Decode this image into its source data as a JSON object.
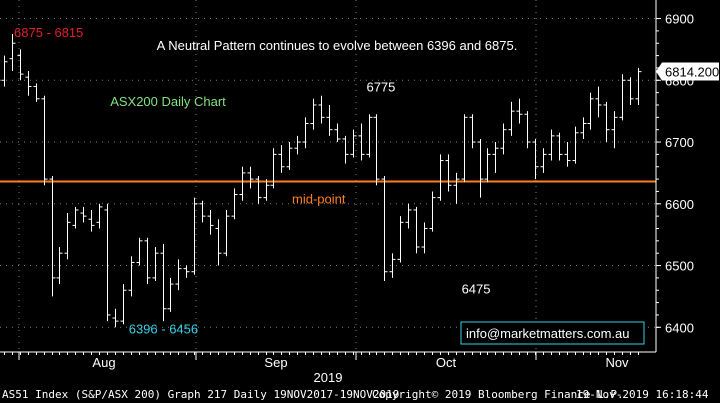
{
  "chart_data": {
    "type": "ohlc",
    "title": "ASX200 Daily Chart",
    "subtitle": "A Neutral Pattern continues to evolve between 6396 and 6875.",
    "ylim": [
      6360,
      6930
    ],
    "yticks": [
      6400,
      6500,
      6600,
      6700,
      6800,
      6900
    ],
    "x_month_labels": [
      "Aug",
      "Sep",
      "Oct",
      "Nov"
    ],
    "x_year_label": "2019",
    "last_price": "6814.200",
    "mid_point": {
      "value": 6636,
      "label": "mid-point",
      "color": "#ff7f1e"
    },
    "annotations": [
      {
        "text": "6875 - 6815",
        "color": "#e0202a",
        "x": 0,
        "y": 6870
      },
      {
        "text": "6775",
        "color": "#ffffff",
        "x": 47,
        "y": 6782
      },
      {
        "text": "6396 - 6456",
        "color": "#35d0e8",
        "x": 17,
        "y": 6390
      },
      {
        "text": "6475",
        "color": "#ffffff",
        "x": 59,
        "y": 6455
      }
    ],
    "contact": "info@marketmatters.com.au",
    "bars": [
      {
        "o": 6800,
        "h": 6840,
        "l": 6790,
        "c": 6830
      },
      {
        "o": 6835,
        "h": 6875,
        "l": 6815,
        "c": 6860
      },
      {
        "o": 6840,
        "h": 6850,
        "l": 6800,
        "c": 6810
      },
      {
        "o": 6805,
        "h": 6815,
        "l": 6775,
        "c": 6790
      },
      {
        "o": 6790,
        "h": 6795,
        "l": 6765,
        "c": 6770
      },
      {
        "o": 6770,
        "h": 6775,
        "l": 6630,
        "c": 6640
      },
      {
        "o": 6640,
        "h": 6645,
        "l": 6450,
        "c": 6480
      },
      {
        "o": 6480,
        "h": 6530,
        "l": 6470,
        "c": 6520
      },
      {
        "o": 6520,
        "h": 6585,
        "l": 6510,
        "c": 6570
      },
      {
        "o": 6565,
        "h": 6595,
        "l": 6560,
        "c": 6590
      },
      {
        "o": 6585,
        "h": 6595,
        "l": 6570,
        "c": 6580
      },
      {
        "o": 6575,
        "h": 6590,
        "l": 6555,
        "c": 6565
      },
      {
        "o": 6570,
        "h": 6600,
        "l": 6560,
        "c": 6595
      },
      {
        "o": 6590,
        "h": 6600,
        "l": 6410,
        "c": 6420
      },
      {
        "o": 6415,
        "h": 6430,
        "l": 6400,
        "c": 6410
      },
      {
        "o": 6410,
        "h": 6470,
        "l": 6405,
        "c": 6460
      },
      {
        "o": 6460,
        "h": 6515,
        "l": 6450,
        "c": 6505
      },
      {
        "o": 6505,
        "h": 6545,
        "l": 6500,
        "c": 6540
      },
      {
        "o": 6540,
        "h": 6545,
        "l": 6470,
        "c": 6480
      },
      {
        "o": 6480,
        "h": 6530,
        "l": 6475,
        "c": 6520
      },
      {
        "o": 6520,
        "h": 6535,
        "l": 6410,
        "c": 6430
      },
      {
        "o": 6430,
        "h": 6480,
        "l": 6425,
        "c": 6470
      },
      {
        "o": 6470,
        "h": 6510,
        "l": 6460,
        "c": 6495
      },
      {
        "o": 6495,
        "h": 6500,
        "l": 6480,
        "c": 6490
      },
      {
        "o": 6490,
        "h": 6610,
        "l": 6485,
        "c": 6600
      },
      {
        "o": 6600,
        "h": 6605,
        "l": 6570,
        "c": 6580
      },
      {
        "o": 6580,
        "h": 6590,
        "l": 6550,
        "c": 6565
      },
      {
        "o": 6560,
        "h": 6575,
        "l": 6500,
        "c": 6520
      },
      {
        "o": 6520,
        "h": 6590,
        "l": 6515,
        "c": 6580
      },
      {
        "o": 6580,
        "h": 6625,
        "l": 6575,
        "c": 6615
      },
      {
        "o": 6615,
        "h": 6660,
        "l": 6605,
        "c": 6650
      },
      {
        "o": 6650,
        "h": 6660,
        "l": 6625,
        "c": 6640
      },
      {
        "o": 6640,
        "h": 6645,
        "l": 6600,
        "c": 6610
      },
      {
        "o": 6610,
        "h": 6640,
        "l": 6605,
        "c": 6630
      },
      {
        "o": 6630,
        "h": 6690,
        "l": 6625,
        "c": 6680
      },
      {
        "o": 6680,
        "h": 6695,
        "l": 6650,
        "c": 6660
      },
      {
        "o": 6660,
        "h": 6700,
        "l": 6655,
        "c": 6690
      },
      {
        "o": 6690,
        "h": 6710,
        "l": 6680,
        "c": 6700
      },
      {
        "o": 6700,
        "h": 6740,
        "l": 6690,
        "c": 6730
      },
      {
        "o": 6730,
        "h": 6770,
        "l": 6720,
        "c": 6760
      },
      {
        "o": 6760,
        "h": 6775,
        "l": 6730,
        "c": 6740
      },
      {
        "o": 6740,
        "h": 6760,
        "l": 6710,
        "c": 6720
      },
      {
        "o": 6720,
        "h": 6730,
        "l": 6700,
        "c": 6705
      },
      {
        "o": 6705,
        "h": 6710,
        "l": 6665,
        "c": 6680
      },
      {
        "o": 6680,
        "h": 6720,
        "l": 6675,
        "c": 6710
      },
      {
        "o": 6710,
        "h": 6730,
        "l": 6670,
        "c": 6680
      },
      {
        "o": 6680,
        "h": 6745,
        "l": 6675,
        "c": 6740
      },
      {
        "o": 6740,
        "h": 6745,
        "l": 6630,
        "c": 6640
      },
      {
        "o": 6640,
        "h": 6645,
        "l": 6475,
        "c": 6490
      },
      {
        "o": 6490,
        "h": 6520,
        "l": 6480,
        "c": 6510
      },
      {
        "o": 6510,
        "h": 6580,
        "l": 6505,
        "c": 6570
      },
      {
        "o": 6570,
        "h": 6600,
        "l": 6560,
        "c": 6590
      },
      {
        "o": 6590,
        "h": 6595,
        "l": 6520,
        "c": 6530
      },
      {
        "o": 6530,
        "h": 6570,
        "l": 6520,
        "c": 6560
      },
      {
        "o": 6560,
        "h": 6620,
        "l": 6555,
        "c": 6610
      },
      {
        "o": 6610,
        "h": 6680,
        "l": 6605,
        "c": 6670
      },
      {
        "o": 6670,
        "h": 6680,
        "l": 6620,
        "c": 6630
      },
      {
        "o": 6630,
        "h": 6650,
        "l": 6600,
        "c": 6640
      },
      {
        "o": 6640,
        "h": 6745,
        "l": 6635,
        "c": 6740
      },
      {
        "o": 6740,
        "h": 6745,
        "l": 6690,
        "c": 6700
      },
      {
        "o": 6700,
        "h": 6705,
        "l": 6610,
        "c": 6640
      },
      {
        "o": 6640,
        "h": 6690,
        "l": 6635,
        "c": 6680
      },
      {
        "o": 6680,
        "h": 6700,
        "l": 6650,
        "c": 6690
      },
      {
        "o": 6690,
        "h": 6730,
        "l": 6680,
        "c": 6720
      },
      {
        "o": 6720,
        "h": 6765,
        "l": 6710,
        "c": 6750
      },
      {
        "o": 6750,
        "h": 6770,
        "l": 6730,
        "c": 6745
      },
      {
        "o": 6745,
        "h": 6750,
        "l": 6690,
        "c": 6700
      },
      {
        "o": 6700,
        "h": 6705,
        "l": 6640,
        "c": 6660
      },
      {
        "o": 6660,
        "h": 6690,
        "l": 6650,
        "c": 6680
      },
      {
        "o": 6680,
        "h": 6720,
        "l": 6670,
        "c": 6710
      },
      {
        "o": 6710,
        "h": 6715,
        "l": 6670,
        "c": 6680
      },
      {
        "o": 6680,
        "h": 6700,
        "l": 6660,
        "c": 6670
      },
      {
        "o": 6670,
        "h": 6725,
        "l": 6665,
        "c": 6715
      },
      {
        "o": 6715,
        "h": 6740,
        "l": 6705,
        "c": 6730
      },
      {
        "o": 6730,
        "h": 6780,
        "l": 6720,
        "c": 6770
      },
      {
        "o": 6770,
        "h": 6790,
        "l": 6740,
        "c": 6760
      },
      {
        "o": 6760,
        "h": 6765,
        "l": 6700,
        "c": 6720
      },
      {
        "o": 6720,
        "h": 6750,
        "l": 6690,
        "c": 6740
      },
      {
        "o": 6740,
        "h": 6810,
        "l": 6735,
        "c": 6800
      },
      {
        "o": 6800,
        "h": 6805,
        "l": 6760,
        "c": 6770
      },
      {
        "o": 6770,
        "h": 6820,
        "l": 6760,
        "c": 6814
      }
    ]
  },
  "footer": {
    "left": "AS51 Index (S&P/ASX 200) Graph 217  Daily 19NOV2017-19NOV2019",
    "middle": "Copyright© 2019 Bloomberg Finance L.P.",
    "right": "19-Nov-2019 16:18:44"
  }
}
